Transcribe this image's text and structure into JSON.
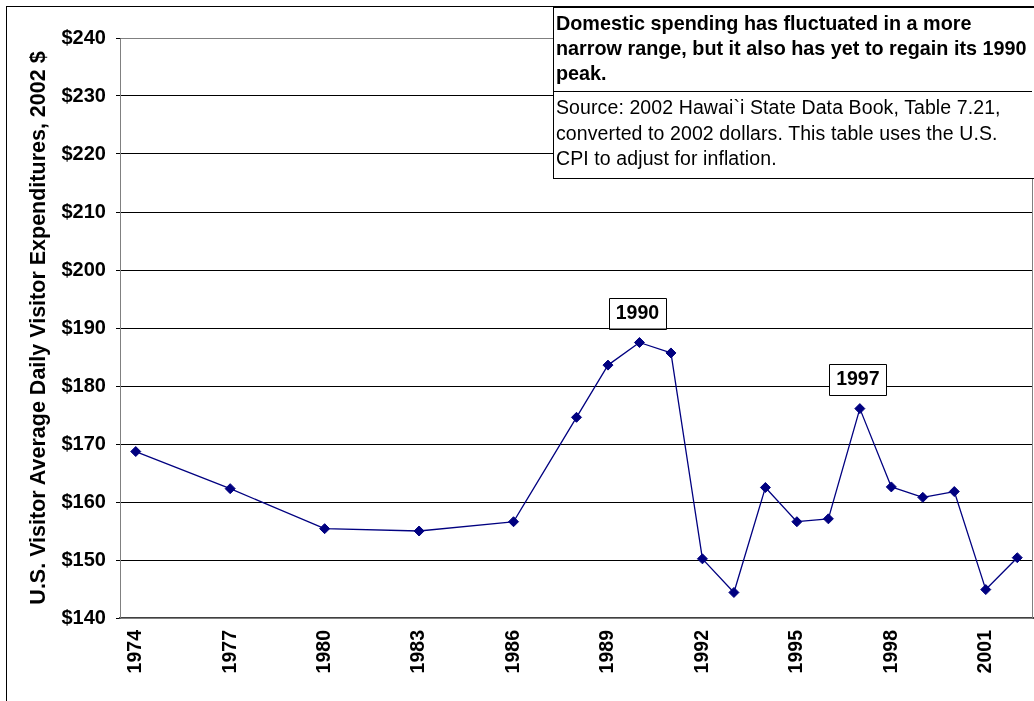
{
  "chart_data": {
    "type": "line",
    "title": "Domestic spending has fluctuated in a more narrow range, but it also has yet to regain its 1990 peak.",
    "ylabel": "U.S. Visitor Average Daily Visitor Expenditures, 2002 $",
    "annotations": [
      {
        "text": "1990",
        "x": 1990,
        "y": 187.5
      },
      {
        "text": "1997",
        "x": 1997,
        "y": 176.1
      },
      "Source: 2002 Hawai`i State Data Book, Table 7.21, converted to 2002 dollars. This table uses the U.S. CPI to adjust for inflation."
    ],
    "x": [
      1974,
      1977,
      1980,
      1983,
      1986,
      1988,
      1989,
      1990,
      1991,
      1992,
      1993,
      1994,
      1995,
      1996,
      1997,
      1998,
      1999,
      2000,
      2001,
      2002
    ],
    "series": [
      {
        "color": "#000080",
        "values": [
          168.7,
          162.3,
          155.4,
          155.0,
          156.6,
          174.6,
          183.6,
          187.5,
          185.7,
          150.2,
          144.4,
          162.5,
          156.6,
          157.1,
          176.1,
          162.6,
          160.8,
          161.8,
          144.9,
          150.4
        ]
      }
    ],
    "xlim": [
      1973.5,
      2002.5
    ],
    "xticks": [
      1974,
      1977,
      1980,
      1983,
      1986,
      1989,
      1992,
      1995,
      1998,
      2001
    ],
    "ylim": [
      140,
      240
    ],
    "yticks": [
      {
        "value": 140,
        "label": "$140"
      },
      {
        "value": 150,
        "label": "$150"
      },
      {
        "value": 160,
        "label": "$160"
      },
      {
        "value": 170,
        "label": "$170"
      },
      {
        "value": 180,
        "label": "$180"
      },
      {
        "value": 190,
        "label": "$190"
      },
      {
        "value": 200,
        "label": "$200"
      },
      {
        "value": 210,
        "label": "$210"
      },
      {
        "value": 220,
        "label": "$220"
      },
      {
        "value": 230,
        "label": "$230"
      },
      {
        "value": 240,
        "label": "$240"
      }
    ],
    "grid": "y",
    "marker": "diamond",
    "line_style": "solid"
  }
}
